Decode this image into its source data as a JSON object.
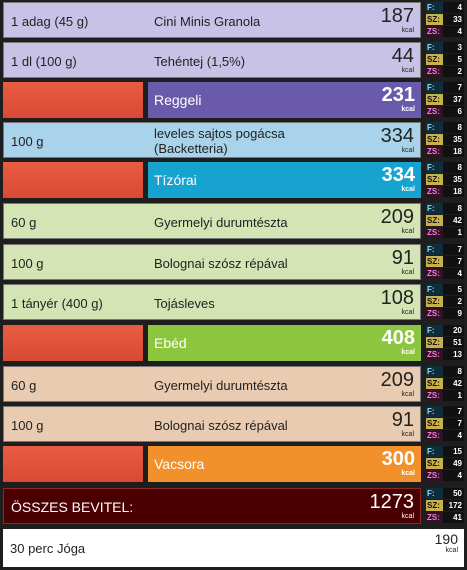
{
  "rows": [
    {
      "qty": "1 adag (45 g)",
      "name": "Cini Minis Granola",
      "kcal": "187",
      "unit": "kcal",
      "f": "4",
      "sz": "33",
      "zs": "4"
    },
    {
      "qty": "1 dl (100 g)",
      "name": "Tehéntej (1,5%)",
      "kcal": "44",
      "unit": "kcal",
      "f": "3",
      "sz": "5",
      "zs": "2"
    },
    {
      "meal": "Reggeli",
      "kcal": "231",
      "unit": "kcal",
      "f": "7",
      "sz": "37",
      "zs": "6"
    },
    {
      "qty": "100 g",
      "name": "leveles sajtos pogácsa (Backetteria)",
      "kcal": "334",
      "unit": "kcal",
      "f": "8",
      "sz": "35",
      "zs": "18"
    },
    {
      "meal": "Tízórai",
      "kcal": "334",
      "unit": "kcal",
      "f": "8",
      "sz": "35",
      "zs": "18"
    },
    {
      "qty": "60 g",
      "name": "Gyermelyi durumtészta",
      "kcal": "209",
      "unit": "kcal",
      "f": "8",
      "sz": "42",
      "zs": "1"
    },
    {
      "qty": "100 g",
      "name": "Bolognai szósz répával",
      "kcal": "91",
      "unit": "kcal",
      "f": "7",
      "sz": "7",
      "zs": "4"
    },
    {
      "qty": "1 tányér (400 g)",
      "name": "Tojásleves",
      "kcal": "108",
      "unit": "kcal",
      "f": "5",
      "sz": "2",
      "zs": "9"
    },
    {
      "meal": "Ebéd",
      "kcal": "408",
      "unit": "kcal",
      "f": "20",
      "sz": "51",
      "zs": "13"
    },
    {
      "qty": "60 g",
      "name": "Gyermelyi durumtészta",
      "kcal": "209",
      "unit": "kcal",
      "f": "8",
      "sz": "42",
      "zs": "1"
    },
    {
      "qty": "100 g",
      "name": "Bolognai szósz répával",
      "kcal": "91",
      "unit": "kcal",
      "f": "7",
      "sz": "7",
      "zs": "4"
    },
    {
      "meal": "Vacsora",
      "kcal": "300",
      "unit": "kcal",
      "f": "15",
      "sz": "49",
      "zs": "4"
    }
  ],
  "total": {
    "label": "ÖSSZES BEVITEL:",
    "kcal": "1273",
    "unit": "kcal",
    "f": "50",
    "sz": "172",
    "zs": "41"
  },
  "exercise": {
    "label": "30 perc Jóga",
    "kcal": "190",
    "unit": "kcal"
  },
  "macro_labels": {
    "f": "F:",
    "sz": "SZ:",
    "zs": "ZS:"
  },
  "colors": {
    "breakfast_item": "#c8c3e6",
    "breakfast_meal": "#6a5aab",
    "snack_item": "#a9d3ea",
    "snack_meal": "#16a3d0",
    "lunch_item": "#d4e4b5",
    "lunch_meal": "#8dc53e",
    "dinner_item": "#e8cbb0",
    "dinner_meal": "#f2902c",
    "meal_accent": "#ea5b43"
  }
}
